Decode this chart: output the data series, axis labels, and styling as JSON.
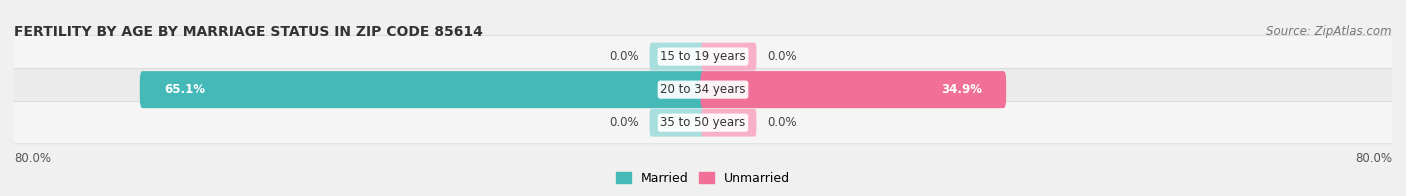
{
  "title": "FERTILITY BY AGE BY MARRIAGE STATUS IN ZIP CODE 85614",
  "source": "Source: ZipAtlas.com",
  "categories": [
    "15 to 19 years",
    "20 to 34 years",
    "35 to 50 years"
  ],
  "married_values": [
    0.0,
    65.1,
    0.0
  ],
  "unmarried_values": [
    0.0,
    34.9,
    0.0
  ],
  "x_left_label": "80.0%",
  "x_right_label": "80.0%",
  "married_color": "#45b8b8",
  "unmarried_color": "#f07098",
  "married_light": "#a8dede",
  "unmarried_light": "#f8b0c8",
  "bar_bg_color": "#e0e0e0",
  "row_bg_even": "#ebebeb",
  "row_bg_odd": "#f5f5f5",
  "max_val": 80.0,
  "min_bar_size": 6.0,
  "title_fontsize": 10,
  "source_fontsize": 8.5,
  "label_fontsize": 8.5,
  "category_fontsize": 8.5
}
